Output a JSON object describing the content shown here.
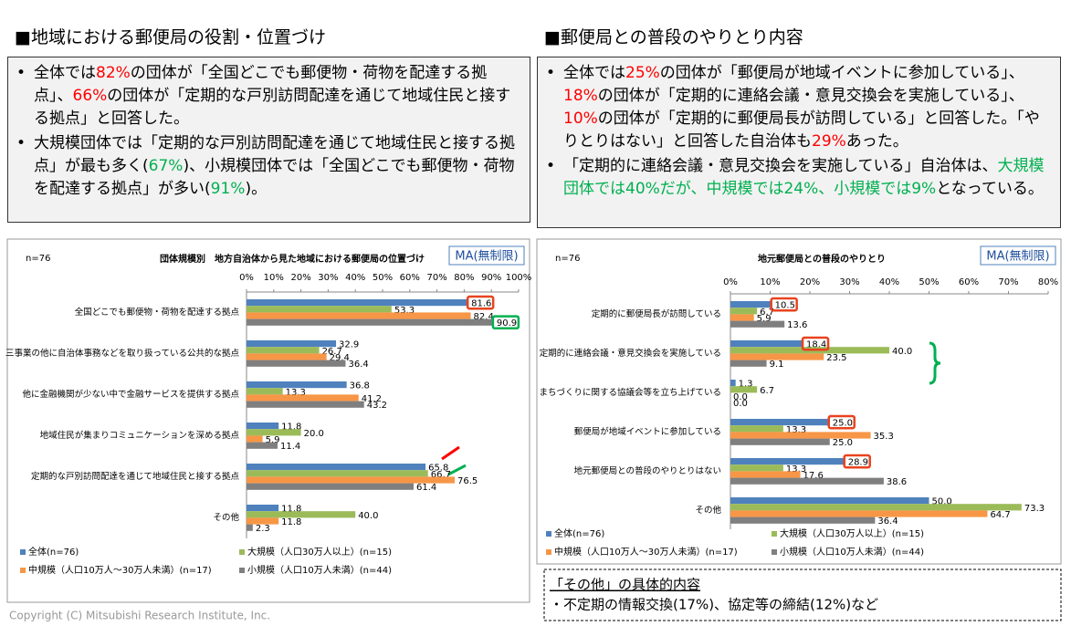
{
  "left_heading": "■地域における郵便局の役割・位置づけ",
  "right_heading": "■郵便局との普段のやりとり内容",
  "left_bullets": [
    [
      {
        "text": "全体では"
      },
      {
        "text": "82%",
        "color": "#ff0000"
      },
      {
        "text": "の団体が「全国どこでも郵便物・荷物を配達する拠点」、"
      },
      {
        "text": "66%",
        "color": "#ff0000"
      },
      {
        "text": "の団体が「定期的な戸別訪問配達を通じて地域住民と接する拠点」と回答した。"
      }
    ],
    [
      {
        "text": "大規模団体では「定期的な戸別訪問配達を通じて地域住民と接する拠点」が最も多く("
      },
      {
        "text": "67%",
        "color": "#00b050"
      },
      {
        "text": ")、小規模団体では「全国どこでも郵便物・荷物を配達する拠点」が多い("
      },
      {
        "text": "91%",
        "color": "#00b050"
      },
      {
        "text": ")。"
      }
    ]
  ],
  "right_bullets": [
    [
      {
        "text": "全体では"
      },
      {
        "text": "25%",
        "color": "#ff0000"
      },
      {
        "text": "の団体が「郵便局が地域イベントに参加している」、"
      },
      {
        "text": "18%",
        "color": "#ff0000"
      },
      {
        "text": "の団体が「定期的に連絡会議・意見交換会を実施している」、"
      },
      {
        "text": "10%",
        "color": "#ff0000"
      },
      {
        "text": "の団体が「定期的に郵便局長が訪問している」と回答した。「やりとりはない」と回答した自治体も"
      },
      {
        "text": "29%",
        "color": "#ff0000"
      },
      {
        "text": "あった。"
      }
    ],
    [
      {
        "text": "「定期的に連絡会議・意見交換会を実施している」自治体は、"
      },
      {
        "text": "大規模団体では40%だが、中規模では24%、小規模では9%",
        "color": "#00b050"
      },
      {
        "text": "となっている。"
      }
    ]
  ],
  "chart_data": [
    {
      "type": "hbar",
      "n_label": "n=76",
      "title": "団体規模別　地方自治体から見た地域における郵便局の位置づけ",
      "tag": "MA(無制限)",
      "categories": [
        "全国どこでも郵便物・荷物を配達する拠点",
        "三事業の他に自治体事務などを取り扱っている公共的な拠点",
        "他に金融機関が少ない中で金融サービスを提供する拠点",
        "地域住民が集まりコミュニケーションを深める拠点",
        "定期的な戸別訪問配達を通じて地域住民と接する拠点",
        "その他"
      ],
      "xlim": [
        0,
        100
      ],
      "xticks": [
        {
          "value": 0,
          "label": "0%"
        },
        {
          "value": 10,
          "label": "10%"
        },
        {
          "value": 20,
          "label": "20%"
        },
        {
          "value": 30,
          "label": "30%"
        },
        {
          "value": 40,
          "label": "40%"
        },
        {
          "value": 50,
          "label": "50%"
        },
        {
          "value": 60,
          "label": "60%"
        },
        {
          "value": 70,
          "label": "70%"
        },
        {
          "value": 80,
          "label": "80%"
        },
        {
          "value": 90,
          "label": "90%"
        },
        {
          "value": 100,
          "label": "100%"
        }
      ],
      "grid": false,
      "series": [
        {
          "name": "全体(n=76)",
          "color": "#4f81bd",
          "values": [
            81.6,
            32.9,
            36.8,
            11.8,
            65.8,
            11.8
          ],
          "value_labels": [
            "81.6",
            "32.9",
            "36.8",
            "11.8",
            "65.8",
            "11.8"
          ]
        },
        {
          "name": "大規模（人口30万人以上）(n=15)",
          "color": "#9bbb59",
          "values": [
            53.3,
            26.7,
            13.3,
            20.0,
            66.7,
            40.0
          ],
          "value_labels": [
            "53.3",
            "26.7",
            "13.3",
            "20.0",
            "66.7",
            "40.0"
          ]
        },
        {
          "name": "中規模（人口10万人～30万人未満）(n=17)",
          "color": "#f79646",
          "values": [
            82.4,
            29.4,
            41.2,
            5.9,
            76.5,
            11.8
          ],
          "value_labels": [
            "82.4",
            "29.4",
            "41.2",
            "5.9",
            "76.5",
            "11.8"
          ]
        },
        {
          "name": "小規模（人口10万人未満）(n=44)",
          "color": "#7f7f7f",
          "values": [
            90.9,
            36.4,
            43.2,
            11.4,
            61.4,
            2.3
          ],
          "value_labels": [
            "90.9",
            "36.4",
            "43.2",
            "11.4",
            "61.4",
            "2.3"
          ]
        }
      ],
      "highlights": [
        {
          "series": 0,
          "category": 0,
          "color": "#e8431f"
        },
        {
          "series": 3,
          "category": 0,
          "color": "#00b050"
        }
      ]
    },
    {
      "type": "hbar",
      "n_label": "n=76",
      "title": "地元郵便局との普段のやりとり",
      "tag": "MA(無制限)",
      "categories": [
        "定期的に郵便局長が訪問している",
        "定期的に連絡会議・意見交換会を実施している",
        "まちづくりに関する協議会等を立ち上げている",
        "郵便局が地域イベントに参加している",
        "地元郵便局との普段のやりとりはない",
        "その他"
      ],
      "xlim": [
        0,
        80
      ],
      "xticks": [
        {
          "value": 0,
          "label": "0%"
        },
        {
          "value": 10,
          "label": "10%"
        },
        {
          "value": 20,
          "label": "20%"
        },
        {
          "value": 30,
          "label": "30%"
        },
        {
          "value": 40,
          "label": "40%"
        },
        {
          "value": 50,
          "label": "50%"
        },
        {
          "value": 60,
          "label": "60%"
        },
        {
          "value": 70,
          "label": "70%"
        },
        {
          "value": 80,
          "label": "80%"
        }
      ],
      "grid": false,
      "series": [
        {
          "name": "全体(n=76)",
          "color": "#4f81bd",
          "values": [
            10.5,
            18.4,
            1.3,
            25.0,
            28.9,
            50.0
          ],
          "value_labels": [
            "10.5",
            "18.4",
            "1.3",
            "25.0",
            "28.9",
            "50.0"
          ]
        },
        {
          "name": "大規模（人口30万人以上）(n=15)",
          "color": "#9bbb59",
          "values": [
            6.7,
            40.0,
            6.7,
            13.3,
            13.3,
            73.3
          ],
          "value_labels": [
            "6.7",
            "40.0",
            "6.7",
            "13.3",
            "13.3",
            "73.3"
          ]
        },
        {
          "name": "中規模（人口10万人～30万人未満）(n=17)",
          "color": "#f79646",
          "values": [
            5.9,
            23.5,
            0.0,
            35.3,
            17.6,
            64.7
          ],
          "value_labels": [
            "5.9",
            "23.5",
            "0.0",
            "35.3",
            "17.6",
            "64.7"
          ]
        },
        {
          "name": "小規模（人口10万人未満）(n=44)",
          "color": "#7f7f7f",
          "values": [
            13.6,
            9.1,
            0.0,
            25.0,
            38.6,
            36.4
          ],
          "value_labels": [
            "13.6",
            "9.1",
            "0.0",
            "25.0",
            "38.6",
            "36.4"
          ]
        }
      ],
      "highlights": [
        {
          "series": 0,
          "category": 0,
          "color": "#e8431f"
        },
        {
          "series": 0,
          "category": 1,
          "color": "#e8431f"
        },
        {
          "series": 0,
          "category": 3,
          "color": "#e8431f"
        },
        {
          "series": 0,
          "category": 4,
          "color": "#e8431f"
        }
      ]
    }
  ],
  "note_title": "「その他」の具体的内容",
  "note_text": "・不定期の情報交換(17%)、協定等の締結(12%)など",
  "copyright": "Copyright (C) Mitsubishi Research Institute, Inc."
}
